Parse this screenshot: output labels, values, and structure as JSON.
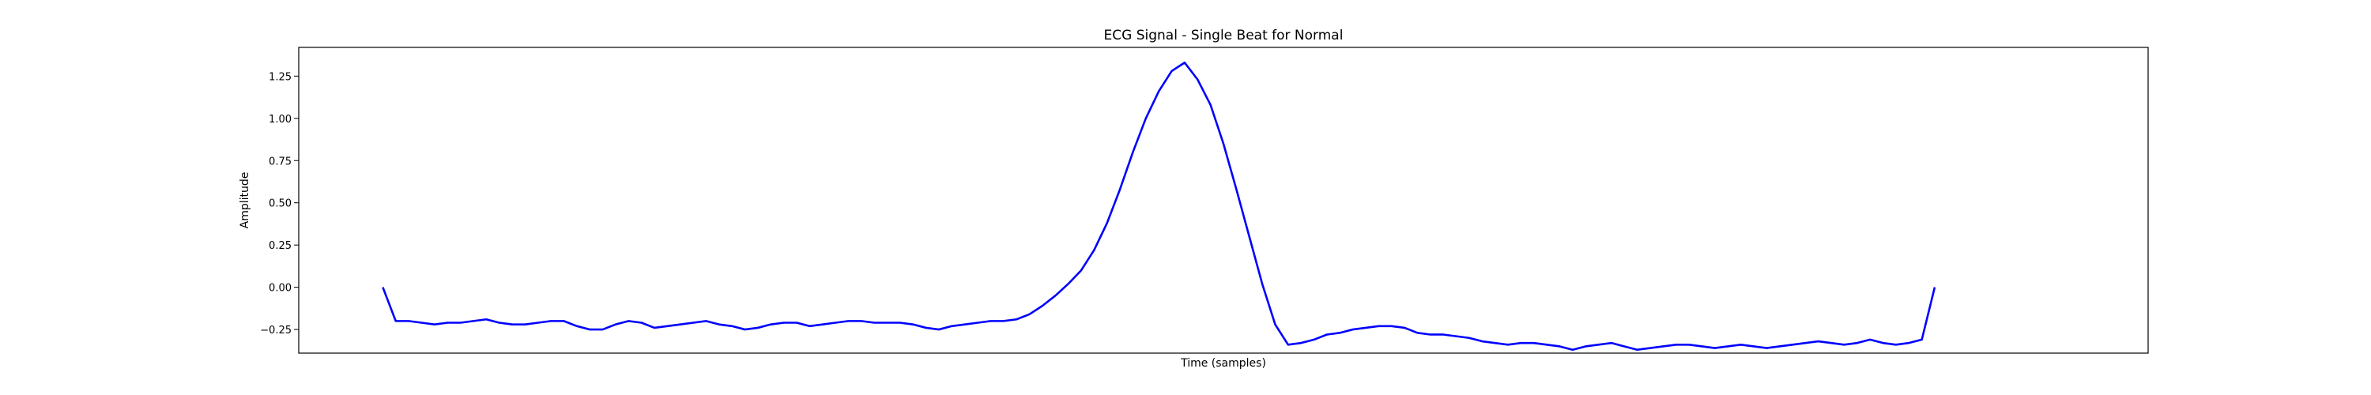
{
  "chart_data": {
    "type": "line",
    "title": "ECG Signal - Single Beat for Normal",
    "xlabel": "Time (samples)",
    "ylabel": "Amplitude",
    "ylim": [
      -0.39,
      1.42
    ],
    "xlim": [
      -6.5,
      136.5
    ],
    "yticks": [
      -0.25,
      0.0,
      0.25,
      0.5,
      0.75,
      1.0,
      1.25
    ],
    "ytick_labels": [
      "−0.25",
      "0.00",
      "0.25",
      "0.50",
      "0.75",
      "1.00",
      "1.25"
    ],
    "show_x_ticks": false,
    "grid": false,
    "line_color": "#0000ff",
    "series": [
      {
        "values": [
          0.0,
          -0.2,
          -0.2,
          -0.21,
          -0.22,
          -0.21,
          -0.21,
          -0.2,
          -0.19,
          -0.21,
          -0.22,
          -0.22,
          -0.21,
          -0.2,
          -0.2,
          -0.23,
          -0.25,
          -0.25,
          -0.22,
          -0.2,
          -0.21,
          -0.24,
          -0.23,
          -0.22,
          -0.21,
          -0.2,
          -0.22,
          -0.23,
          -0.25,
          -0.24,
          -0.22,
          -0.21,
          -0.21,
          -0.23,
          -0.22,
          -0.21,
          -0.2,
          -0.2,
          -0.21,
          -0.21,
          -0.21,
          -0.22,
          -0.24,
          -0.25,
          -0.23,
          -0.22,
          -0.21,
          -0.2,
          -0.2,
          -0.19,
          -0.16,
          -0.11,
          -0.05,
          0.02,
          0.1,
          0.22,
          0.38,
          0.58,
          0.8,
          1.0,
          1.16,
          1.28,
          1.33,
          1.23,
          1.08,
          0.85,
          0.58,
          0.3,
          0.02,
          -0.22,
          -0.34,
          -0.33,
          -0.31,
          -0.28,
          -0.27,
          -0.25,
          -0.24,
          -0.23,
          -0.23,
          -0.24,
          -0.27,
          -0.28,
          -0.28,
          -0.29,
          -0.3,
          -0.32,
          -0.33,
          -0.34,
          -0.33,
          -0.33,
          -0.34,
          -0.35,
          -0.37,
          -0.35,
          -0.34,
          -0.33,
          -0.35,
          -0.37,
          -0.36,
          -0.35,
          -0.34,
          -0.34,
          -0.35,
          -0.36,
          -0.35,
          -0.34,
          -0.35,
          -0.36,
          -0.35,
          -0.34,
          -0.33,
          -0.32,
          -0.33,
          -0.34,
          -0.33,
          -0.31,
          -0.33,
          -0.34,
          -0.33,
          -0.31,
          0.0
        ]
      }
    ]
  }
}
